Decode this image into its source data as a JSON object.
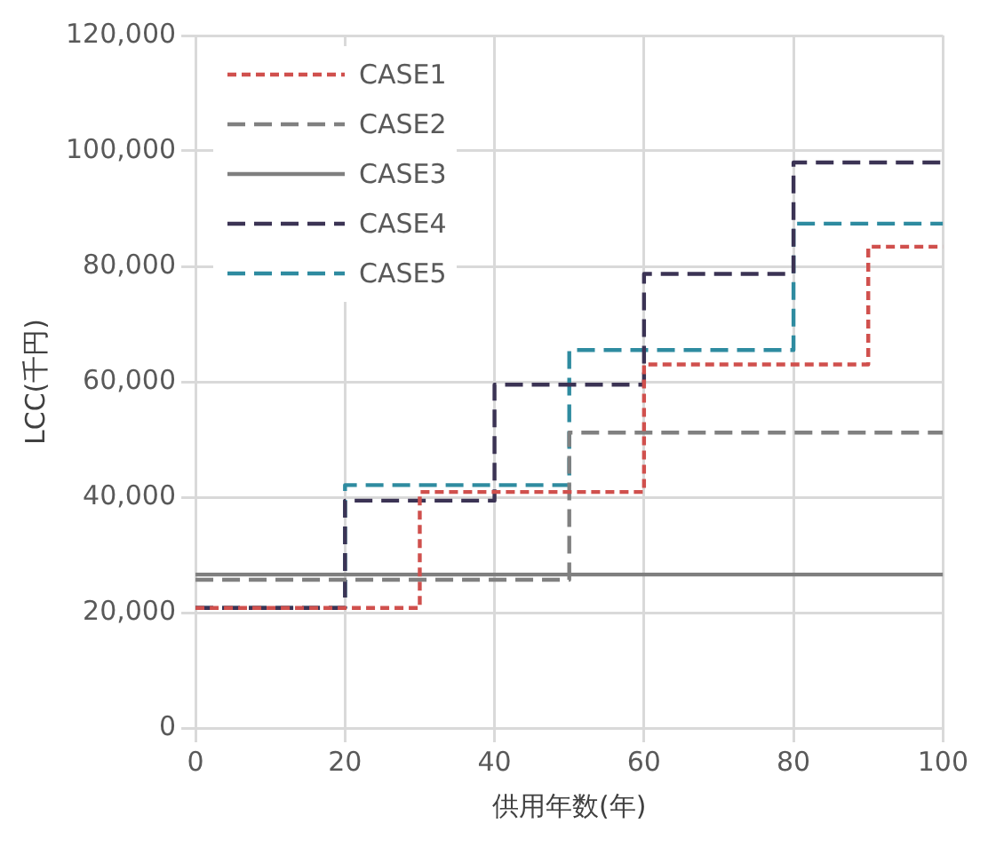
{
  "chart_data": {
    "type": "step",
    "xlabel": "供用年数(年)",
    "ylabel": "LCC(千円)",
    "xlim": [
      0,
      100
    ],
    "xticks": [
      0,
      20,
      40,
      60,
      80,
      100
    ],
    "ylim": [
      0,
      120000
    ],
    "yticks": [
      {
        "value": 0,
        "label": "0"
      },
      {
        "value": 20000,
        "label": "20,000"
      },
      {
        "value": 40000,
        "label": "40,000"
      },
      {
        "value": 60000,
        "label": "60,000"
      },
      {
        "value": 80000,
        "label": "80,000"
      },
      {
        "value": 100000,
        "label": "100,000"
      },
      {
        "value": 120000,
        "label": "120,000"
      }
    ],
    "grid": true,
    "legend": "top left",
    "series": [
      {
        "name": "CASE1",
        "color": "#d0504d",
        "line_style": "dotted",
        "x": [
          0,
          30,
          60,
          90,
          100
        ],
        "values": [
          20800,
          40900,
          63000,
          83400,
          83400
        ]
      },
      {
        "name": "CASE2",
        "color": "#808080",
        "line_style": "dashed",
        "x": [
          0,
          50,
          100
        ],
        "values": [
          25700,
          51200,
          51200
        ]
      },
      {
        "name": "CASE3",
        "color": "#7f7f7f",
        "line_style": "solid",
        "x": [
          0,
          100
        ],
        "values": [
          26600,
          26600
        ]
      },
      {
        "name": "CASE4",
        "color": "#3b3354",
        "line_style": "dashed",
        "x": [
          0,
          20,
          40,
          60,
          80,
          100
        ],
        "values": [
          20800,
          39400,
          59500,
          78700,
          98000,
          98000
        ]
      },
      {
        "name": "CASE5",
        "color": "#2e8ba0",
        "line_style": "dashed",
        "x": [
          0,
          20,
          50,
          80,
          100
        ],
        "values": [
          20800,
          42100,
          65500,
          87400,
          87400
        ]
      }
    ]
  }
}
